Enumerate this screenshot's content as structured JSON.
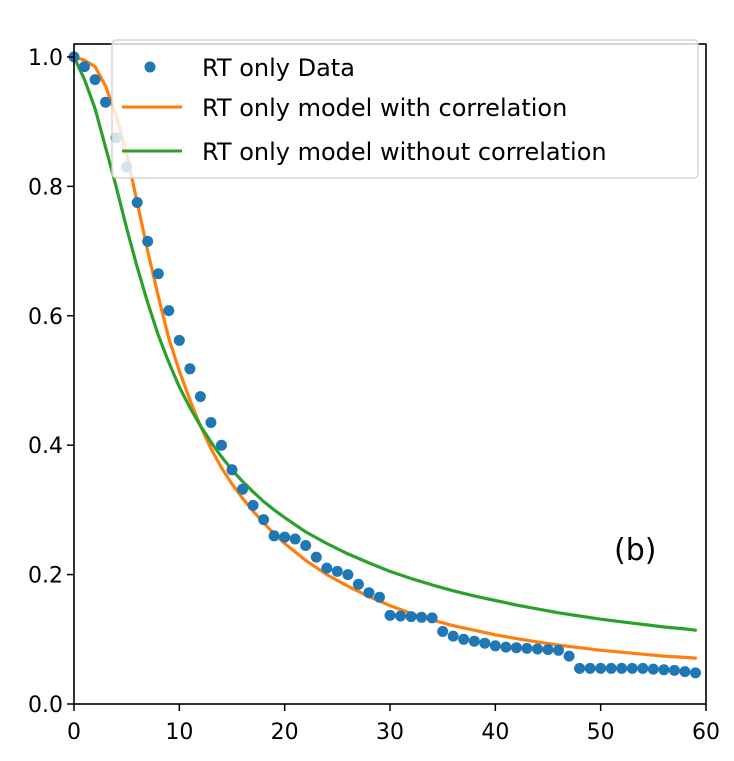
{
  "chart_data": {
    "type": "scatter",
    "title": "",
    "xlabel": "",
    "ylabel": "",
    "xlim": [
      0,
      60
    ],
    "ylim": [
      0,
      1.02
    ],
    "xticks": [
      "0",
      "10",
      "20",
      "30",
      "40",
      "50",
      "60"
    ],
    "yticks": [
      "0.0",
      "0.2",
      "0.4",
      "0.6",
      "0.8",
      "1.0"
    ],
    "grid": false,
    "legend_position": "top-right",
    "annotation": "(b)",
    "series": [
      {
        "name": "RT only Data",
        "kind": "scatter",
        "color": "#1f77b4",
        "x": [
          0,
          1,
          2,
          3,
          4,
          5,
          6,
          7,
          8,
          9,
          10,
          11,
          12,
          13,
          14,
          15,
          16,
          17,
          18,
          19,
          20,
          21,
          22,
          23,
          24,
          25,
          26,
          27,
          28,
          29,
          30,
          31,
          32,
          33,
          34,
          35,
          36,
          37,
          38,
          39,
          40,
          41,
          42,
          43,
          44,
          45,
          46,
          47,
          48,
          49,
          50,
          51,
          52,
          53,
          54,
          55,
          56,
          57,
          58,
          59
        ],
        "y": [
          1.0,
          0.985,
          0.965,
          0.93,
          0.875,
          0.83,
          0.775,
          0.715,
          0.665,
          0.608,
          0.562,
          0.518,
          0.475,
          0.435,
          0.4,
          0.362,
          0.332,
          0.307,
          0.285,
          0.26,
          0.258,
          0.255,
          0.245,
          0.227,
          0.21,
          0.205,
          0.2,
          0.185,
          0.172,
          0.165,
          0.137,
          0.136,
          0.135,
          0.134,
          0.133,
          0.112,
          0.105,
          0.1,
          0.097,
          0.094,
          0.09,
          0.088,
          0.087,
          0.086,
          0.085,
          0.084,
          0.083,
          0.074,
          0.055,
          0.055,
          0.055,
          0.055,
          0.055,
          0.055,
          0.055,
          0.054,
          0.053,
          0.052,
          0.05,
          0.048
        ]
      },
      {
        "name": "RT only model with correlation",
        "kind": "line",
        "color": "#ff7f0e",
        "x": [
          0,
          1,
          2,
          3,
          4,
          5,
          6,
          7,
          8,
          9,
          10,
          11,
          12,
          13,
          14,
          15,
          16,
          17,
          18,
          19,
          20,
          22,
          24,
          26,
          28,
          30,
          32,
          34,
          36,
          38,
          40,
          42,
          44,
          46,
          48,
          50,
          52,
          54,
          56,
          58,
          59
        ],
        "y": [
          1.0,
          0.995,
          0.985,
          0.955,
          0.91,
          0.85,
          0.775,
          0.7,
          0.63,
          0.565,
          0.515,
          0.47,
          0.43,
          0.395,
          0.365,
          0.34,
          0.318,
          0.298,
          0.28,
          0.263,
          0.248,
          0.222,
          0.2,
          0.182,
          0.166,
          0.152,
          0.14,
          0.13,
          0.121,
          0.114,
          0.107,
          0.101,
          0.096,
          0.091,
          0.087,
          0.083,
          0.08,
          0.077,
          0.074,
          0.072,
          0.071
        ]
      },
      {
        "name": "RT only model without correlation",
        "kind": "line",
        "color": "#2ca02c",
        "x": [
          0,
          1,
          2,
          3,
          4,
          5,
          6,
          7,
          8,
          9,
          10,
          11,
          12,
          13,
          14,
          15,
          16,
          17,
          18,
          19,
          20,
          22,
          24,
          26,
          28,
          30,
          32,
          34,
          36,
          38,
          40,
          42,
          44,
          46,
          48,
          50,
          52,
          54,
          56,
          58,
          59
        ],
        "y": [
          1.0,
          0.965,
          0.92,
          0.86,
          0.8,
          0.735,
          0.675,
          0.62,
          0.57,
          0.528,
          0.49,
          0.458,
          0.43,
          0.405,
          0.382,
          0.362,
          0.344,
          0.328,
          0.313,
          0.3,
          0.288,
          0.266,
          0.248,
          0.232,
          0.218,
          0.205,
          0.194,
          0.184,
          0.175,
          0.167,
          0.16,
          0.153,
          0.147,
          0.141,
          0.136,
          0.131,
          0.127,
          0.123,
          0.119,
          0.116,
          0.114
        ]
      }
    ]
  }
}
